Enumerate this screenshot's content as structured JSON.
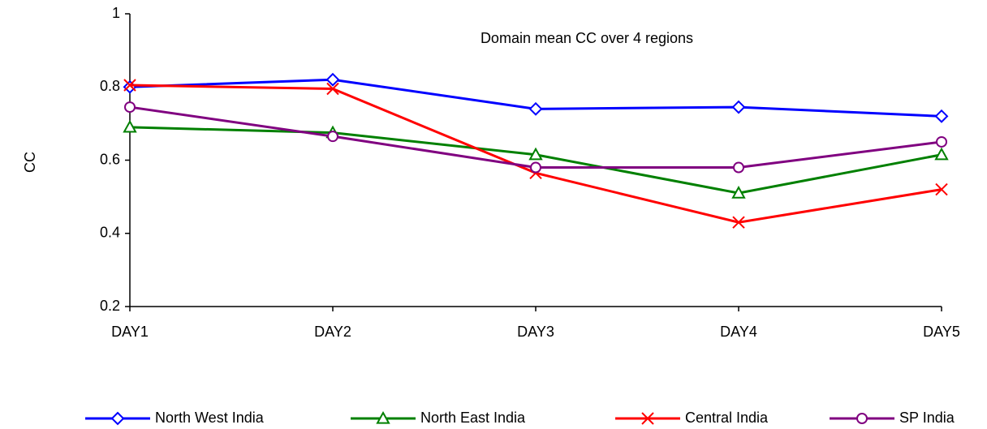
{
  "chart_data": {
    "type": "line",
    "title": "Domain mean CC over 4 regions",
    "y_label": "CC",
    "categories": [
      "DAY1",
      "DAY2",
      "DAY3",
      "DAY4",
      "DAY5"
    ],
    "series": [
      {
        "name": "North West India",
        "color": "#0000ff",
        "marker": "diamond",
        "values": [
          0.8,
          0.82,
          0.74,
          0.745,
          0.72
        ]
      },
      {
        "name": "North East India",
        "color": "#008000",
        "marker": "triangle",
        "values": [
          0.69,
          0.675,
          0.615,
          0.51,
          0.615
        ]
      },
      {
        "name": "Central India",
        "color": "#ff0000",
        "marker": "x",
        "values": [
          0.805,
          0.795,
          0.565,
          0.43,
          0.52
        ]
      },
      {
        "name": "SP India",
        "color": "#800080",
        "marker": "circle",
        "values": [
          0.745,
          0.665,
          0.58,
          0.58,
          0.65
        ]
      }
    ],
    "ylim": [
      0.2,
      1
    ],
    "yticks": [
      0.2,
      0.4,
      0.6,
      0.8,
      1
    ],
    "grid": false,
    "legend": "bottom"
  }
}
